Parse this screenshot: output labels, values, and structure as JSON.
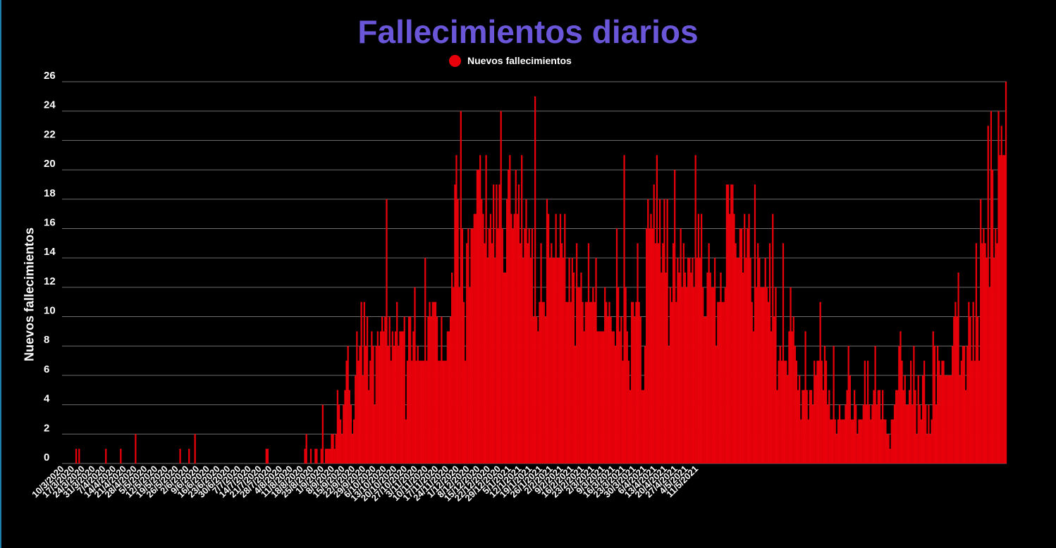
{
  "colors": {
    "title": "#6a56d8",
    "series": "#e8000b",
    "grid": "#6e6e6e",
    "text": "#ffffff",
    "background": "#000000"
  },
  "chart_data": {
    "type": "bar",
    "title": "Fallecimientos diarios",
    "ylabel": "Nuevos fallecimientos",
    "xlabel": "",
    "ylim": [
      0,
      26
    ],
    "yticks": [
      0,
      2,
      4,
      6,
      8,
      10,
      12,
      14,
      16,
      18,
      20,
      22,
      24,
      26
    ],
    "legend": {
      "position": "top-center",
      "label": "Nuevos fallecimientos"
    },
    "grid": true,
    "x_start": "10/3/2020",
    "x_end": "11/5/2021",
    "xtick_labels": [
      "10/3/2020",
      "17/3/2020",
      "24/3/2020",
      "31/3/2020",
      "7/4/2020",
      "14/4/2020",
      "21/4/2020",
      "28/4/2020",
      "5/5/2020",
      "12/5/2020",
      "19/5/2020",
      "26/5/2020",
      "2/6/2020",
      "9/6/2020",
      "16/6/2020",
      "23/6/2020",
      "30/6/2020",
      "7/7/2020",
      "14/7/2020",
      "21/7/2020",
      "28/7/2020",
      "4/8/2020",
      "11/8/2020",
      "18/8/2020",
      "25/8/2020",
      "1/9/2020",
      "8/9/2020",
      "15/9/2020",
      "22/9/2020",
      "29/9/2020",
      "6/10/2020",
      "13/10/2020",
      "20/10/2020",
      "27/10/2020",
      "3/11/2020",
      "10/11/2020",
      "17/11/2020",
      "24/11/2020",
      "1/12/2020",
      "8/12/2020",
      "15/12/2020",
      "22/12/2020",
      "29/12/2020",
      "5/1/2021",
      "12/1/2021",
      "19/1/2021",
      "26/1/2021",
      "2/2/2021",
      "9/2/2021",
      "16/2/2021",
      "23/2/2021",
      "2/3/2021",
      "9/3/2021",
      "16/3/2021",
      "23/3/2021",
      "30/3/2021",
      "6/4/2021",
      "13/4/2021",
      "20/4/2021",
      "27/4/2021",
      "4/5/2021",
      "11/5/2021"
    ],
    "series": [
      {
        "name": "Nuevos fallecimientos",
        "values": [
          0,
          0,
          0,
          0,
          0,
          0,
          0,
          0,
          0,
          1,
          0,
          1,
          0,
          0,
          0,
          0,
          0,
          0,
          0,
          0,
          0,
          0,
          0,
          0,
          0,
          0,
          0,
          0,
          0,
          1,
          0,
          0,
          0,
          0,
          0,
          0,
          0,
          0,
          0,
          1,
          0,
          0,
          0,
          0,
          0,
          0,
          0,
          0,
          0,
          2,
          0,
          0,
          0,
          0,
          0,
          0,
          0,
          0,
          0,
          0,
          0,
          0,
          0,
          0,
          0,
          0,
          0,
          0,
          0,
          0,
          0,
          0,
          0,
          0,
          0,
          0,
          0,
          0,
          0,
          1,
          0,
          0,
          0,
          0,
          0,
          1,
          0,
          0,
          0,
          2,
          0,
          0,
          0,
          0,
          0,
          0,
          0,
          0,
          0,
          0,
          0,
          0,
          0,
          0,
          0,
          0,
          0,
          0,
          0,
          0,
          0,
          0,
          0,
          0,
          0,
          0,
          0,
          0,
          0,
          0,
          0,
          0,
          0,
          0,
          0,
          0,
          0,
          0,
          0,
          0,
          0,
          0,
          0,
          0,
          0,
          0,
          0,
          1,
          1,
          0,
          0,
          0,
          0,
          0,
          0,
          0,
          0,
          0,
          0,
          0,
          0,
          0,
          0,
          0,
          0,
          0,
          0,
          0,
          0,
          0,
          0,
          0,
          0,
          1,
          2,
          0,
          0,
          1,
          0,
          0,
          1,
          1,
          0,
          0,
          1,
          4,
          0,
          1,
          1,
          1,
          1,
          2,
          2,
          1,
          2,
          5,
          4,
          3,
          2,
          4,
          5,
          7,
          8,
          5,
          4,
          2,
          3,
          6,
          9,
          7,
          8,
          11,
          6,
          11,
          8,
          10,
          5,
          7,
          9,
          8,
          4,
          8,
          9,
          8,
          9,
          10,
          9,
          10,
          18,
          8,
          10,
          7,
          9,
          8,
          9,
          11,
          8,
          9,
          9,
          9,
          10,
          3,
          7,
          10,
          10,
          7,
          9,
          12,
          7,
          8,
          7,
          7,
          7,
          7,
          14,
          7,
          10,
          11,
          10,
          11,
          11,
          11,
          10,
          7,
          7,
          10,
          7,
          7,
          7,
          9,
          9,
          10,
          13,
          12,
          19,
          21,
          18,
          12,
          24,
          16,
          11,
          7,
          15,
          16,
          12,
          16,
          16,
          17,
          17,
          20,
          20,
          21,
          18,
          17,
          15,
          21,
          14,
          16,
          17,
          15,
          19,
          14,
          19,
          16,
          19,
          24,
          16,
          13,
          13,
          18,
          20,
          21,
          17,
          16,
          17,
          20,
          17,
          19,
          15,
          21,
          14,
          16,
          18,
          15,
          16,
          14,
          16,
          10,
          25,
          10,
          9,
          11,
          15,
          11,
          11,
          10,
          18,
          17,
          14,
          15,
          14,
          14,
          17,
          14,
          14,
          17,
          15,
          14,
          17,
          11,
          11,
          14,
          11,
          14,
          13,
          8,
          15,
          12,
          12,
          13,
          11,
          9,
          11,
          11,
          15,
          11,
          11,
          12,
          11,
          14,
          9,
          9,
          9,
          9,
          9,
          12,
          11,
          10,
          11,
          10,
          9,
          9,
          8,
          16,
          12,
          9,
          10,
          7,
          21,
          12,
          9,
          7,
          5,
          11,
          11,
          10,
          11,
          15,
          11,
          10,
          5,
          5,
          8,
          16,
          18,
          16,
          17,
          16,
          19,
          15,
          21,
          15,
          18,
          13,
          15,
          18,
          13,
          18,
          8,
          12,
          11,
          15,
          20,
          11,
          14,
          13,
          16,
          12,
          15,
          13,
          12,
          14,
          14,
          13,
          14,
          12,
          21,
          14,
          17,
          14,
          17,
          12,
          10,
          10,
          13,
          15,
          13,
          12,
          12,
          14,
          8,
          11,
          11,
          13,
          11,
          11,
          12,
          19,
          19,
          17,
          19,
          19,
          17,
          15,
          14,
          14,
          16,
          16,
          13,
          17,
          14,
          16,
          17,
          14,
          11,
          9,
          19,
          12,
          15,
          14,
          12,
          12,
          12,
          14,
          12,
          11,
          15,
          9,
          17,
          10,
          12,
          5,
          7,
          8,
          7,
          15,
          7,
          7,
          6,
          9,
          12,
          9,
          10,
          8,
          7,
          5,
          6,
          3,
          5,
          5,
          9,
          5,
          3,
          5,
          5,
          4,
          7,
          6,
          7,
          7,
          11,
          7,
          5,
          8,
          7,
          4,
          5,
          3,
          3,
          8,
          3,
          2,
          3,
          4,
          3,
          3,
          3,
          4,
          5,
          8,
          6,
          3,
          3,
          5,
          4,
          2,
          3,
          3,
          3,
          4,
          7,
          4,
          7,
          4,
          3,
          4,
          5,
          8,
          4,
          5,
          5,
          3,
          5,
          3,
          3,
          2,
          2,
          1,
          3,
          3,
          4,
          5,
          5,
          8,
          9,
          7,
          5,
          6,
          4,
          4,
          5,
          7,
          4,
          8,
          5,
          2,
          6,
          4,
          3,
          6,
          7,
          4,
          2,
          4,
          2,
          3,
          9,
          8,
          4,
          8,
          7,
          6,
          7,
          7,
          6,
          6,
          6,
          6,
          6,
          8,
          10,
          11,
          10,
          13,
          6,
          7,
          8,
          8,
          5,
          8,
          11,
          10,
          7,
          11,
          7,
          15,
          10,
          7,
          18,
          15,
          16,
          15,
          14,
          23,
          12,
          24,
          20,
          14,
          16,
          15,
          24,
          21,
          23,
          21,
          21,
          26
        ]
      }
    ]
  }
}
